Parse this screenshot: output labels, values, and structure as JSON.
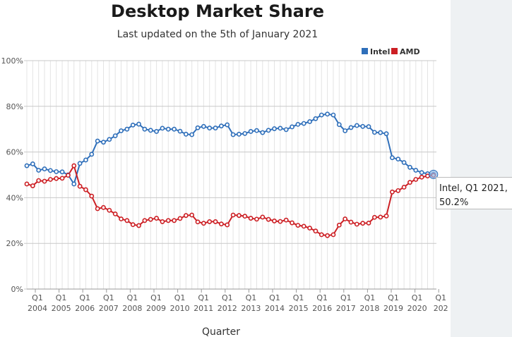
{
  "chart_data": {
    "type": "line",
    "title": "Desktop Market Share",
    "subtitle": "Last updated on the 5th of January 2021",
    "xlabel": "Quarter",
    "ylabel": "",
    "ylim": [
      0,
      100
    ],
    "yticks": [
      "0%",
      "20%",
      "40%",
      "60%",
      "80%",
      "100%"
    ],
    "xtick_top": "Q1",
    "years": [
      "2004",
      "2005",
      "2006",
      "2007",
      "2008",
      "2009",
      "2010",
      "2011",
      "2012",
      "2013",
      "2014",
      "2015",
      "2016",
      "2017",
      "2018",
      "2019",
      "2020",
      "202"
    ],
    "grid": true,
    "legend_position": "top-right",
    "series": [
      {
        "name": "Intel",
        "color": "#2f6fba",
        "values": [
          54,
          54.8,
          52,
          52.6,
          51.9,
          51.4,
          51.3,
          50,
          46,
          55,
          56.5,
          59,
          64.8,
          64.3,
          65.5,
          67.1,
          69.3,
          70,
          71.8,
          72.2,
          70,
          69.5,
          69,
          70.4,
          70,
          70,
          69.1,
          67.8,
          67.6,
          70.6,
          71.2,
          70.5,
          70.5,
          71.4,
          71.9,
          67.6,
          67.8,
          68.1,
          69,
          69.4,
          68.5,
          69.5,
          70.2,
          70.4,
          69.8,
          71,
          72.1,
          72.5,
          73.3,
          74.6,
          76.2,
          76.6,
          76.2,
          72,
          69.3,
          70.7,
          71.6,
          71.2,
          71.1,
          68.6,
          68.5,
          68,
          57.5,
          56.9,
          55.4,
          53.3,
          52,
          51,
          50.5,
          50.2
        ]
      },
      {
        "name": "AMD",
        "color": "#cc1f24",
        "values": [
          46,
          45.2,
          47.5,
          47.2,
          48,
          48.4,
          48.5,
          49.8,
          54,
          45,
          43.5,
          40.7,
          35.2,
          35.7,
          34.5,
          32.9,
          30.7,
          30,
          28.2,
          27.8,
          30,
          30.5,
          31,
          29.5,
          30,
          30,
          30.9,
          32.2,
          32.4,
          29.4,
          28.8,
          29.5,
          29.5,
          28.5,
          28.1,
          32.4,
          32.2,
          31.9,
          31,
          30.6,
          31.5,
          30.5,
          29.8,
          29.6,
          30.2,
          29,
          27.9,
          27.5,
          26.7,
          25.4,
          23.8,
          23.4,
          23.8,
          28,
          30.7,
          29.3,
          28.4,
          28.8,
          28.9,
          31.4,
          31.5,
          32,
          42.5,
          43.1,
          44.6,
          46.7,
          48,
          49,
          49.5,
          49.8
        ]
      }
    ],
    "tooltip": {
      "line1": "Intel, Q1 2021,",
      "line2": "50.2%"
    }
  }
}
